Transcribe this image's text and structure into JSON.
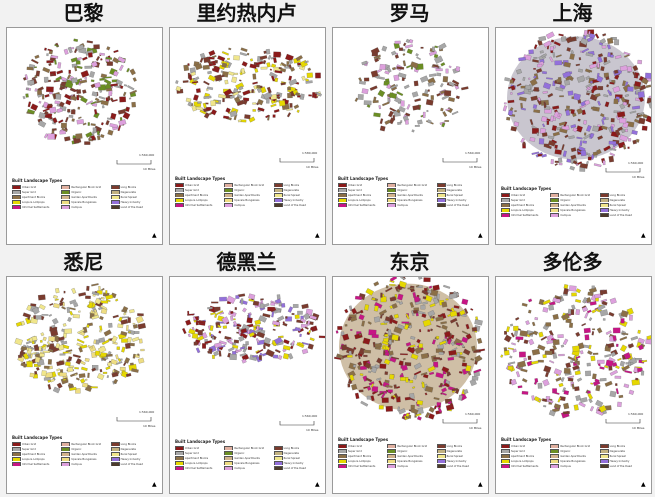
{
  "legend_title": "Built Landscape Types",
  "legend_types": [
    {
      "name": "Urban Grid",
      "color": "#8b1a1a"
    },
    {
      "name": "Rectangular Block Grid",
      "color": "#e0b0a0"
    },
    {
      "name": "Long Blocks",
      "color": "#7a3b2e"
    },
    {
      "name": "Super Grid",
      "color": "#a7a7a7"
    },
    {
      "name": "Organic",
      "color": "#6b8e23"
    },
    {
      "name": "Degenerate",
      "color": "#c2b280"
    },
    {
      "name": "Apartment Blocks",
      "color": "#8b6f47"
    },
    {
      "name": "Garden Apartments",
      "color": "#d2b48c"
    },
    {
      "name": "Rural Sprawl",
      "color": "#f0e68c"
    },
    {
      "name": "Loops & Lollipops",
      "color": "#e6d800"
    },
    {
      "name": "Upscale Bungalows",
      "color": "#eedd82"
    },
    {
      "name": "Heavy Industry",
      "color": "#9370db"
    },
    {
      "name": "Informal Settlements",
      "color": "#c71585"
    },
    {
      "name": "Campus",
      "color": "#dda0dd"
    },
    {
      "name": "Land of the Dead",
      "color": "#4b3b2b"
    }
  ],
  "cities": [
    {
      "name": "巴黎",
      "scale_label": "1:560,000",
      "distance_label": "10 Miles"
    },
    {
      "name": "里约热内卢",
      "scale_label": "1:580,000",
      "distance_label": "10 Miles"
    },
    {
      "name": "罗马",
      "scale_label": "1:560,000",
      "distance_label": "10 Miles"
    },
    {
      "name": "上海",
      "scale_label": "1:560,000",
      "distance_label": "10 Miles"
    },
    {
      "name": "悉尼",
      "scale_label": "1:560,000",
      "distance_label": "10 Miles"
    },
    {
      "name": "德黑兰",
      "scale_label": "1:560,000",
      "distance_label": "10 Miles"
    },
    {
      "name": "东京",
      "scale_label": "1:560,000",
      "distance_label": "10 Miles"
    },
    {
      "name": "多伦多",
      "scale_label": "1:560,000",
      "distance_label": "10 Miles"
    }
  ],
  "north_arrow": "▲"
}
